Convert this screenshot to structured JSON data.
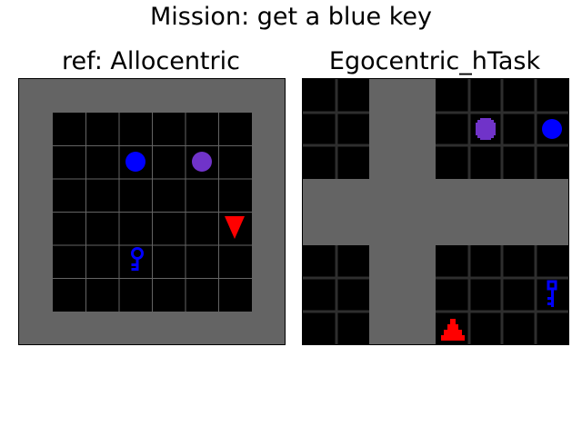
{
  "mission": "Mission: get a blue key",
  "panels": {
    "left": {
      "title": "ref: Allocentric"
    },
    "right": {
      "title": "Egocentric_hTask"
    }
  },
  "colors": {
    "wall": "#646464",
    "floor": "#000000",
    "grid_line_left": "#646464",
    "grid_line_right": "#2e2e2e",
    "blue": "#0000ff",
    "purple": "#7033c9",
    "agent": "#ff0000"
  },
  "objects": {
    "left": [
      {
        "type": "ball",
        "color": "blue"
      },
      {
        "type": "ball",
        "color": "purple"
      },
      {
        "type": "key",
        "color": "blue"
      },
      {
        "type": "agent",
        "color": "red",
        "facing": "down"
      }
    ],
    "right": [
      {
        "type": "ball",
        "color": "purple"
      },
      {
        "type": "ball",
        "color": "blue"
      },
      {
        "type": "key",
        "color": "blue"
      },
      {
        "type": "agent",
        "color": "red",
        "facing": "up"
      }
    ]
  }
}
